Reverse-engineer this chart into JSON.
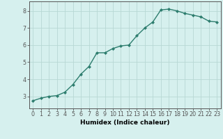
{
  "x": [
    0,
    1,
    2,
    3,
    4,
    5,
    6,
    7,
    8,
    9,
    10,
    11,
    12,
    13,
    14,
    15,
    16,
    17,
    18,
    19,
    20,
    21,
    22,
    23
  ],
  "y": [
    2.75,
    2.9,
    3.0,
    3.05,
    3.25,
    3.7,
    4.3,
    4.75,
    5.55,
    5.55,
    5.8,
    5.95,
    6.0,
    6.55,
    7.0,
    7.35,
    8.05,
    8.1,
    8.0,
    7.85,
    7.75,
    7.65,
    7.4,
    7.35
  ],
  "xlabel": "Humidex (Indice chaleur)",
  "xlim": [
    -0.5,
    23.5
  ],
  "ylim": [
    2.3,
    8.55
  ],
  "yticks": [
    3,
    4,
    5,
    6,
    7,
    8
  ],
  "xticks": [
    0,
    1,
    2,
    3,
    4,
    5,
    6,
    7,
    8,
    9,
    10,
    11,
    12,
    13,
    14,
    15,
    16,
    17,
    18,
    19,
    20,
    21,
    22,
    23
  ],
  "line_color": "#2d7d6e",
  "marker": "D",
  "marker_size": 2.0,
  "bg_color": "#d6f0ee",
  "grid_color": "#b8d8d4",
  "axis_color": "#555555",
  "xlabel_fontsize": 6.5,
  "tick_fontsize": 5.8,
  "linewidth": 1.0
}
